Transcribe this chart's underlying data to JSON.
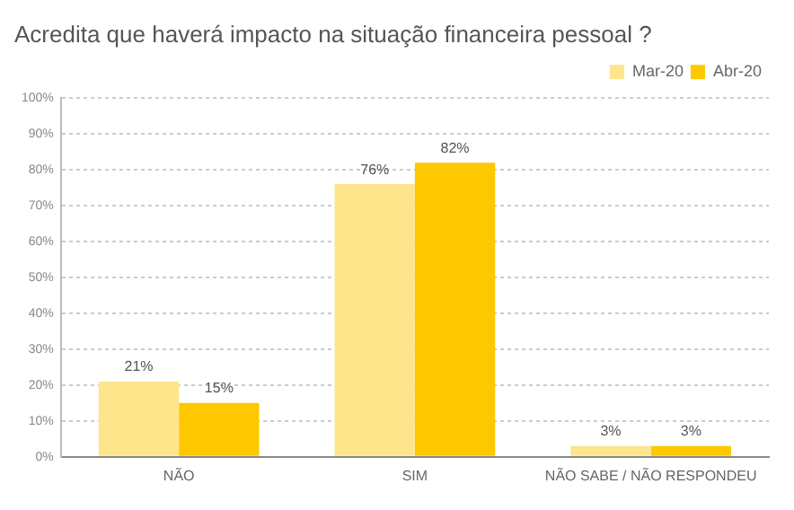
{
  "chart_data": {
    "type": "bar",
    "title": "Acredita que haverá impacto na situação financeira pessoal ?",
    "categories": [
      "NÃO",
      "SIM",
      "NÃO SABE / NÃO RESPONDEU"
    ],
    "series": [
      {
        "name": "Mar-20",
        "color": "#fde58c",
        "values": [
          21,
          76,
          3
        ],
        "value_labels": [
          "21%",
          "76%",
          "3%"
        ]
      },
      {
        "name": "Abr-20",
        "color": "#fdc800",
        "values": [
          15,
          82,
          3
        ],
        "value_labels": [
          "15%",
          "82%",
          "3%"
        ]
      }
    ],
    "ylim": [
      0,
      100
    ],
    "yticks": [
      {
        "value": 0,
        "label": "0%"
      },
      {
        "value": 10,
        "label": "10%"
      },
      {
        "value": 20,
        "label": "20%"
      },
      {
        "value": 30,
        "label": "30%"
      },
      {
        "value": 40,
        "label": "40%"
      },
      {
        "value": 50,
        "label": "50%"
      },
      {
        "value": 60,
        "label": "60%"
      },
      {
        "value": 70,
        "label": "70%"
      },
      {
        "value": 80,
        "label": "80%"
      },
      {
        "value": 90,
        "label": "90%"
      },
      {
        "value": 100,
        "label": "100%"
      }
    ],
    "grid": "y",
    "legend": "top right"
  }
}
